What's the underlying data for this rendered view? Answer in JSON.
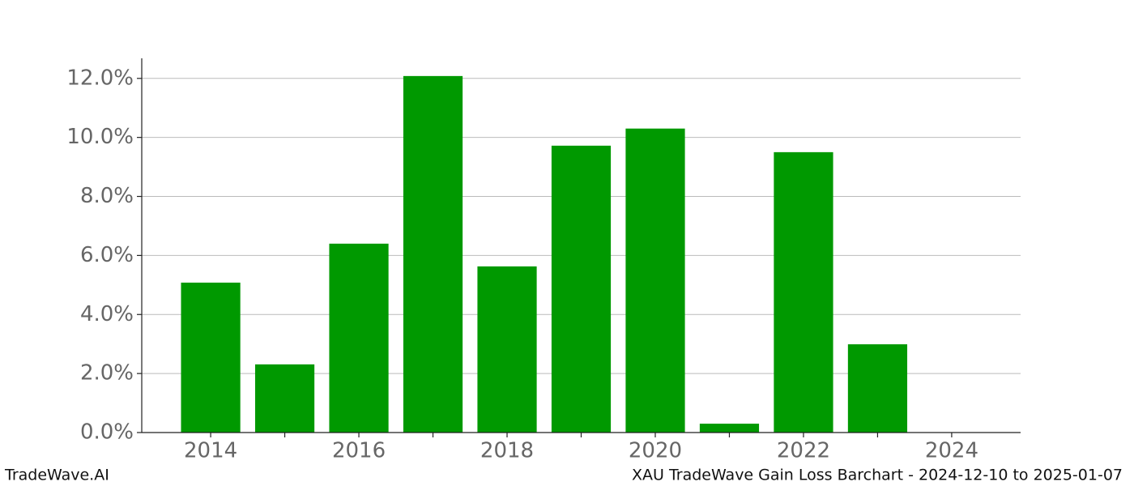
{
  "chart_data": {
    "type": "bar",
    "x": [
      2014,
      2015,
      2016,
      2017,
      2018,
      2019,
      2020,
      2021,
      2022,
      2023
    ],
    "values": [
      5.08,
      2.31,
      6.4,
      12.08,
      5.63,
      9.72,
      10.3,
      0.3,
      9.5,
      2.99
    ],
    "color": "#009900",
    "bar_width": 0.8,
    "xlim": [
      2013.07,
      2024.93
    ],
    "xticks": [
      2014,
      2016,
      2018,
      2020,
      2022,
      2024
    ],
    "xminorticks": [
      2015,
      2017,
      2019,
      2021,
      2023
    ],
    "ylim": [
      0,
      12.68
    ],
    "yticks": [
      {
        "value": 0,
        "label": "0.0%"
      },
      {
        "value": 2,
        "label": "2.0%"
      },
      {
        "value": 4,
        "label": "4.0%"
      },
      {
        "value": 6,
        "label": "6.0%"
      },
      {
        "value": 8,
        "label": "8.0%"
      },
      {
        "value": 10,
        "label": "10.0%"
      },
      {
        "value": 12,
        "label": "12.0%"
      }
    ],
    "grid": true,
    "watermark": "TradeWave.AI",
    "caption": "XAU TradeWave Gain Loss Barchart - 2024-12-10 to 2025-01-07"
  }
}
